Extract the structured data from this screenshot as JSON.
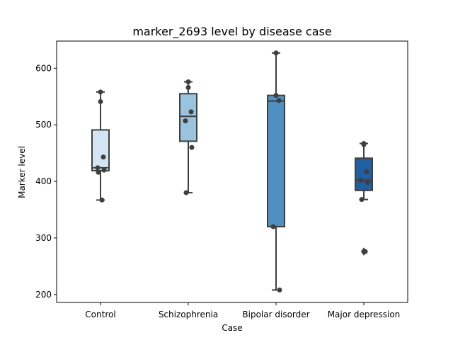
{
  "chart_data": {
    "type": "box",
    "title": "marker_2693 level by disease case",
    "xlabel": "Case",
    "ylabel": "Marker level",
    "ylim": [
      186,
      648
    ],
    "yticks": [
      200,
      300,
      400,
      500,
      600
    ],
    "grid": false,
    "categories": [
      "Control",
      "Schizophrenia",
      "Bipolar disorder",
      "Major depression"
    ],
    "boxes": [
      {
        "category": "Control",
        "whisker_low": 367,
        "q1": 419,
        "median": 424,
        "q3": 491,
        "whisker_high": 558,
        "outliers": [],
        "color": "#d5e4f2"
      },
      {
        "category": "Schizophrenia",
        "whisker_low": 380,
        "q1": 471,
        "median": 515,
        "q3": 555,
        "whisker_high": 576,
        "outliers": [],
        "color": "#9ac4de"
      },
      {
        "category": "Bipolar disorder",
        "whisker_low": 208,
        "q1": 320,
        "median": 542,
        "q3": 552,
        "whisker_high": 627,
        "outliers": [],
        "color": "#4f90c0"
      },
      {
        "category": "Major depression",
        "whisker_low": 368,
        "q1": 384,
        "median": 402,
        "q3": 441,
        "whisker_high": 467,
        "outliers": [
          276
        ],
        "color": "#2060a2"
      }
    ],
    "points": [
      {
        "category": "Control",
        "values": [
          558,
          541,
          443,
          424,
          420,
          416,
          367
        ]
      },
      {
        "category": "Schizophrenia",
        "values": [
          576,
          566,
          523,
          507,
          460,
          380
        ]
      },
      {
        "category": "Bipolar disorder",
        "values": [
          627,
          552,
          543,
          320,
          208
        ]
      },
      {
        "category": "Major depression",
        "values": [
          467,
          465,
          417,
          402,
          398,
          368,
          276
        ]
      }
    ]
  }
}
